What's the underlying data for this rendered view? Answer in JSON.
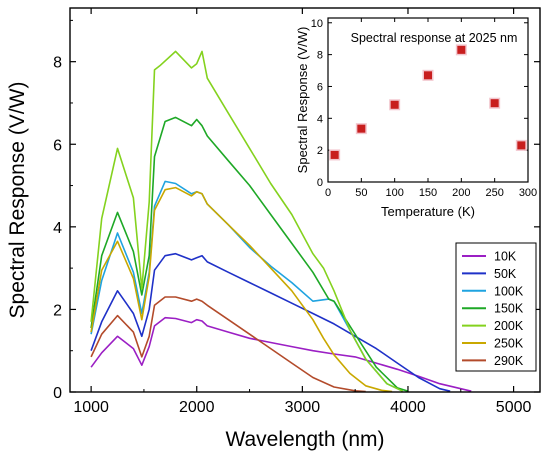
{
  "chart_data": [
    {
      "type": "line",
      "title": "",
      "xlabel": "Wavelength (nm)",
      "ylabel": "Spectral Response (V/W)",
      "xlim": [
        800,
        5250
      ],
      "ylim": [
        0,
        9.3
      ],
      "xticks": [
        1000,
        2000,
        3000,
        4000,
        5000
      ],
      "yticks": [
        0,
        2,
        4,
        6,
        8
      ],
      "grid": false,
      "legend": "lower-right",
      "series": [
        {
          "name": "10K",
          "color": "#9b1fc4",
          "x": [
            1000,
            1100,
            1250,
            1400,
            1480,
            1550,
            1600,
            1700,
            1800,
            1950,
            2000,
            2050,
            2100,
            2300,
            2500,
            2700,
            2900,
            3100,
            3300,
            3500,
            3700,
            3900,
            4100,
            4300,
            4500,
            4600
          ],
          "y": [
            0.6,
            0.95,
            1.35,
            1.05,
            0.65,
            1.1,
            1.6,
            1.8,
            1.78,
            1.68,
            1.75,
            1.72,
            1.6,
            1.45,
            1.3,
            1.2,
            1.1,
            1.0,
            0.92,
            0.85,
            0.7,
            0.55,
            0.38,
            0.2,
            0.08,
            0.02
          ]
        },
        {
          "name": "50K",
          "color": "#1f31c8",
          "x": [
            1000,
            1100,
            1250,
            1400,
            1480,
            1550,
            1600,
            1700,
            1800,
            1950,
            2000,
            2050,
            2100,
            2300,
            2500,
            2700,
            2900,
            3100,
            3300,
            3500,
            3700,
            3900,
            4100,
            4300,
            4400
          ],
          "y": [
            1.0,
            1.7,
            2.45,
            1.9,
            1.35,
            2.0,
            2.95,
            3.3,
            3.35,
            3.2,
            3.25,
            3.3,
            3.15,
            2.9,
            2.65,
            2.4,
            2.15,
            1.9,
            1.65,
            1.35,
            1.05,
            0.7,
            0.35,
            0.08,
            0.02
          ]
        },
        {
          "name": "100K",
          "color": "#1fa3e0",
          "x": [
            1000,
            1100,
            1250,
            1400,
            1480,
            1550,
            1600,
            1700,
            1800,
            1950,
            2000,
            2050,
            2100,
            2300,
            2500,
            2700,
            2900,
            3100,
            3250,
            3300,
            3450,
            3600,
            3800,
            3950
          ],
          "y": [
            1.4,
            2.7,
            3.85,
            2.9,
            1.9,
            2.9,
            4.5,
            5.1,
            5.05,
            4.8,
            4.85,
            4.8,
            4.55,
            4.05,
            3.5,
            3.05,
            2.65,
            2.2,
            2.25,
            2.2,
            1.5,
            0.8,
            0.2,
            0.02
          ]
        },
        {
          "name": "150K",
          "color": "#1ea826",
          "x": [
            1000,
            1100,
            1250,
            1400,
            1480,
            1550,
            1600,
            1700,
            1800,
            1950,
            2000,
            2050,
            2100,
            2300,
            2500,
            2700,
            2900,
            3100,
            3250,
            3300,
            3400,
            3550,
            3700,
            3900,
            4000
          ],
          "y": [
            1.55,
            3.3,
            4.35,
            3.4,
            2.35,
            3.3,
            5.7,
            6.55,
            6.65,
            6.45,
            6.6,
            6.45,
            6.2,
            5.6,
            5.0,
            4.3,
            3.6,
            2.9,
            2.25,
            2.2,
            1.8,
            1.2,
            0.6,
            0.1,
            0.02
          ]
        },
        {
          "name": "200K",
          "color": "#84d21e",
          "x": [
            1000,
            1100,
            1250,
            1400,
            1480,
            1550,
            1600,
            1650,
            1800,
            1950,
            2000,
            2050,
            2100,
            2300,
            2500,
            2700,
            2900,
            3100,
            3200,
            3300,
            3450,
            3600,
            3800,
            3950
          ],
          "y": [
            1.7,
            4.2,
            5.9,
            4.7,
            2.5,
            4.6,
            7.8,
            7.9,
            8.25,
            7.85,
            7.95,
            8.25,
            7.6,
            6.75,
            5.9,
            5.05,
            4.3,
            3.35,
            3.0,
            2.45,
            1.5,
            0.8,
            0.2,
            0.02
          ]
        },
        {
          "name": "250K",
          "color": "#c9a800",
          "x": [
            1000,
            1100,
            1250,
            1400,
            1480,
            1550,
            1600,
            1700,
            1800,
            1950,
            2000,
            2050,
            2100,
            2300,
            2500,
            2700,
            2900,
            3100,
            3200,
            3300,
            3450,
            3600,
            3750,
            3850
          ],
          "y": [
            1.45,
            2.95,
            3.65,
            2.75,
            1.75,
            2.8,
            4.4,
            4.9,
            4.95,
            4.75,
            4.85,
            4.8,
            4.55,
            4.05,
            3.55,
            3.0,
            2.45,
            1.75,
            1.3,
            0.9,
            0.45,
            0.15,
            0.04,
            0.01
          ]
        },
        {
          "name": "290K",
          "color": "#b34b2b",
          "x": [
            1000,
            1100,
            1250,
            1400,
            1480,
            1550,
            1600,
            1700,
            1800,
            1950,
            2000,
            2050,
            2100,
            2300,
            2500,
            2700,
            2900,
            3100,
            3300,
            3500,
            3600
          ],
          "y": [
            0.85,
            1.4,
            1.85,
            1.45,
            0.85,
            1.35,
            2.1,
            2.3,
            2.3,
            2.2,
            2.25,
            2.2,
            2.1,
            1.75,
            1.4,
            1.05,
            0.7,
            0.35,
            0.12,
            0.03,
            0.01
          ]
        }
      ]
    },
    {
      "type": "scatter",
      "title": "Spectral response at 2025 nm",
      "xlabel": "Temperature (K)",
      "ylabel": "Spectral Response (V/W)",
      "xlim": [
        0,
        300
      ],
      "ylim": [
        0,
        10.3
      ],
      "xticks": [
        0,
        50,
        100,
        150,
        200,
        250,
        300
      ],
      "yticks": [
        0,
        2,
        4,
        6,
        8,
        10
      ],
      "grid": false,
      "marker_color": "#c81e1e",
      "points": [
        {
          "x": 10,
          "y": 1.7
        },
        {
          "x": 50,
          "y": 3.35
        },
        {
          "x": 100,
          "y": 4.85
        },
        {
          "x": 150,
          "y": 6.7
        },
        {
          "x": 200,
          "y": 8.3
        },
        {
          "x": 250,
          "y": 4.95
        },
        {
          "x": 290,
          "y": 2.3
        }
      ]
    }
  ]
}
